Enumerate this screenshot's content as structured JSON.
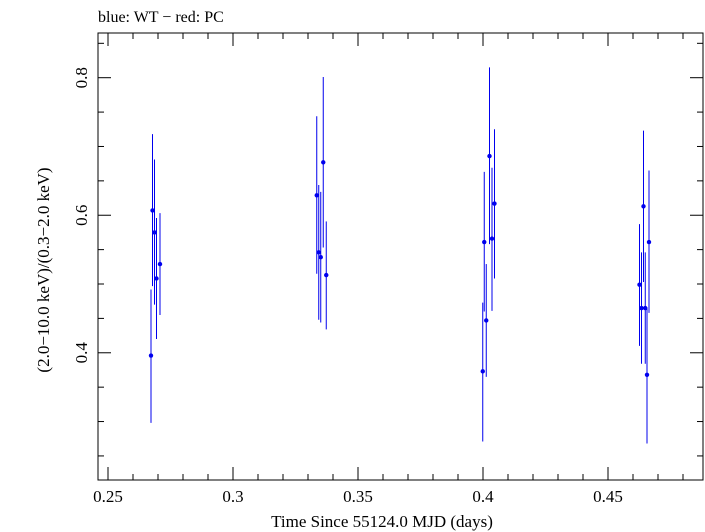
{
  "chart_data": {
    "type": "scatter",
    "title": "blue: WT − red: PC",
    "xlabel": "Time Since 55124.0 MJD (days)",
    "ylabel": "(2.0−10.0 keV)/(0.3−2.0 keV)",
    "xlim": [
      0.246,
      0.488
    ],
    "ylim": [
      0.215,
      0.865
    ],
    "x_ticks": [
      0.25,
      0.3,
      0.35,
      0.4,
      0.45
    ],
    "x_tick_labels": [
      "0.25",
      "0.3",
      "0.35",
      "0.4",
      "0.45"
    ],
    "y_ticks": [
      0.4,
      0.6,
      0.8
    ],
    "y_tick_labels": [
      "0.4",
      "0.6",
      "0.8"
    ],
    "x_minor_step": 0.01,
    "y_minor_step": 0.05,
    "series": [
      {
        "color": "#0000ee",
        "points": [
          {
            "x": 0.2672,
            "y": 0.396,
            "lo": 0.298,
            "hi": 0.492
          },
          {
            "x": 0.2678,
            "y": 0.607,
            "lo": 0.497,
            "hi": 0.718
          },
          {
            "x": 0.2686,
            "y": 0.575,
            "lo": 0.47,
            "hi": 0.681
          },
          {
            "x": 0.2694,
            "y": 0.508,
            "lo": 0.42,
            "hi": 0.596
          },
          {
            "x": 0.2708,
            "y": 0.529,
            "lo": 0.455,
            "hi": 0.603
          },
          {
            "x": 0.3335,
            "y": 0.629,
            "lo": 0.515,
            "hi": 0.744
          },
          {
            "x": 0.3343,
            "y": 0.546,
            "lo": 0.448,
            "hi": 0.644
          },
          {
            "x": 0.3351,
            "y": 0.539,
            "lo": 0.444,
            "hi": 0.634
          },
          {
            "x": 0.3361,
            "y": 0.677,
            "lo": 0.553,
            "hi": 0.801
          },
          {
            "x": 0.3373,
            "y": 0.513,
            "lo": 0.434,
            "hi": 0.591
          },
          {
            "x": 0.3999,
            "y": 0.373,
            "lo": 0.271,
            "hi": 0.473
          },
          {
            "x": 0.4005,
            "y": 0.561,
            "lo": 0.46,
            "hi": 0.663
          },
          {
            "x": 0.4013,
            "y": 0.447,
            "lo": 0.365,
            "hi": 0.529
          },
          {
            "x": 0.4026,
            "y": 0.686,
            "lo": 0.558,
            "hi": 0.815
          },
          {
            "x": 0.4036,
            "y": 0.566,
            "lo": 0.461,
            "hi": 0.669
          },
          {
            "x": 0.4046,
            "y": 0.617,
            "lo": 0.508,
            "hi": 0.725
          },
          {
            "x": 0.4626,
            "y": 0.499,
            "lo": 0.41,
            "hi": 0.587
          },
          {
            "x": 0.4634,
            "y": 0.465,
            "lo": 0.384,
            "hi": 0.546
          },
          {
            "x": 0.4642,
            "y": 0.613,
            "lo": 0.503,
            "hi": 0.723
          },
          {
            "x": 0.4649,
            "y": 0.465,
            "lo": 0.384,
            "hi": 0.546
          },
          {
            "x": 0.4656,
            "y": 0.368,
            "lo": 0.268,
            "hi": 0.466
          },
          {
            "x": 0.4664,
            "y": 0.561,
            "lo": 0.458,
            "hi": 0.665
          }
        ]
      }
    ]
  }
}
